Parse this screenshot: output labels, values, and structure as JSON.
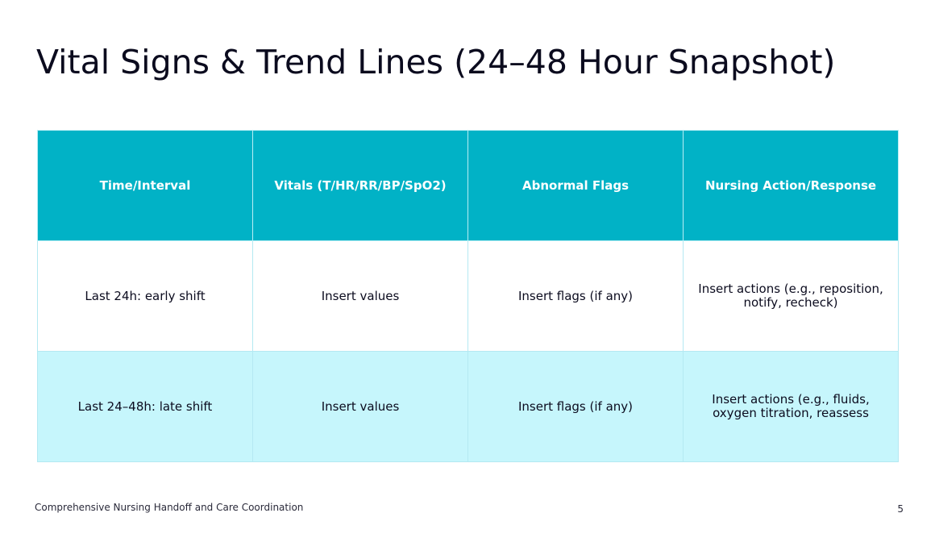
{
  "slide": {
    "title": "Vital Signs & Trend Lines (24–48 Hour Snapshot)",
    "footer": "Comprehensive Nursing Handoff and Care Coordination",
    "page_number": "5"
  },
  "table": {
    "headers": [
      "Time/Interval",
      "Vitals (T/HR/RR/BP/SpO2)",
      "Abnormal Flags",
      "Nursing Action/Response"
    ],
    "rows": [
      [
        "Last 24h: early shift",
        "Insert values",
        "Insert flags (if any)",
        "Insert actions (e.g., reposition, notify, recheck)"
      ],
      [
        "Last 24–48h: late shift",
        "Insert values",
        "Insert flags (if any)",
        "Insert actions (e.g., fluids, oxygen titration, reassess"
      ]
    ]
  },
  "colors": {
    "header_bg": "#01b2c6",
    "alt_row_bg": "#c6f6fc",
    "text": "#0b0b1e"
  }
}
